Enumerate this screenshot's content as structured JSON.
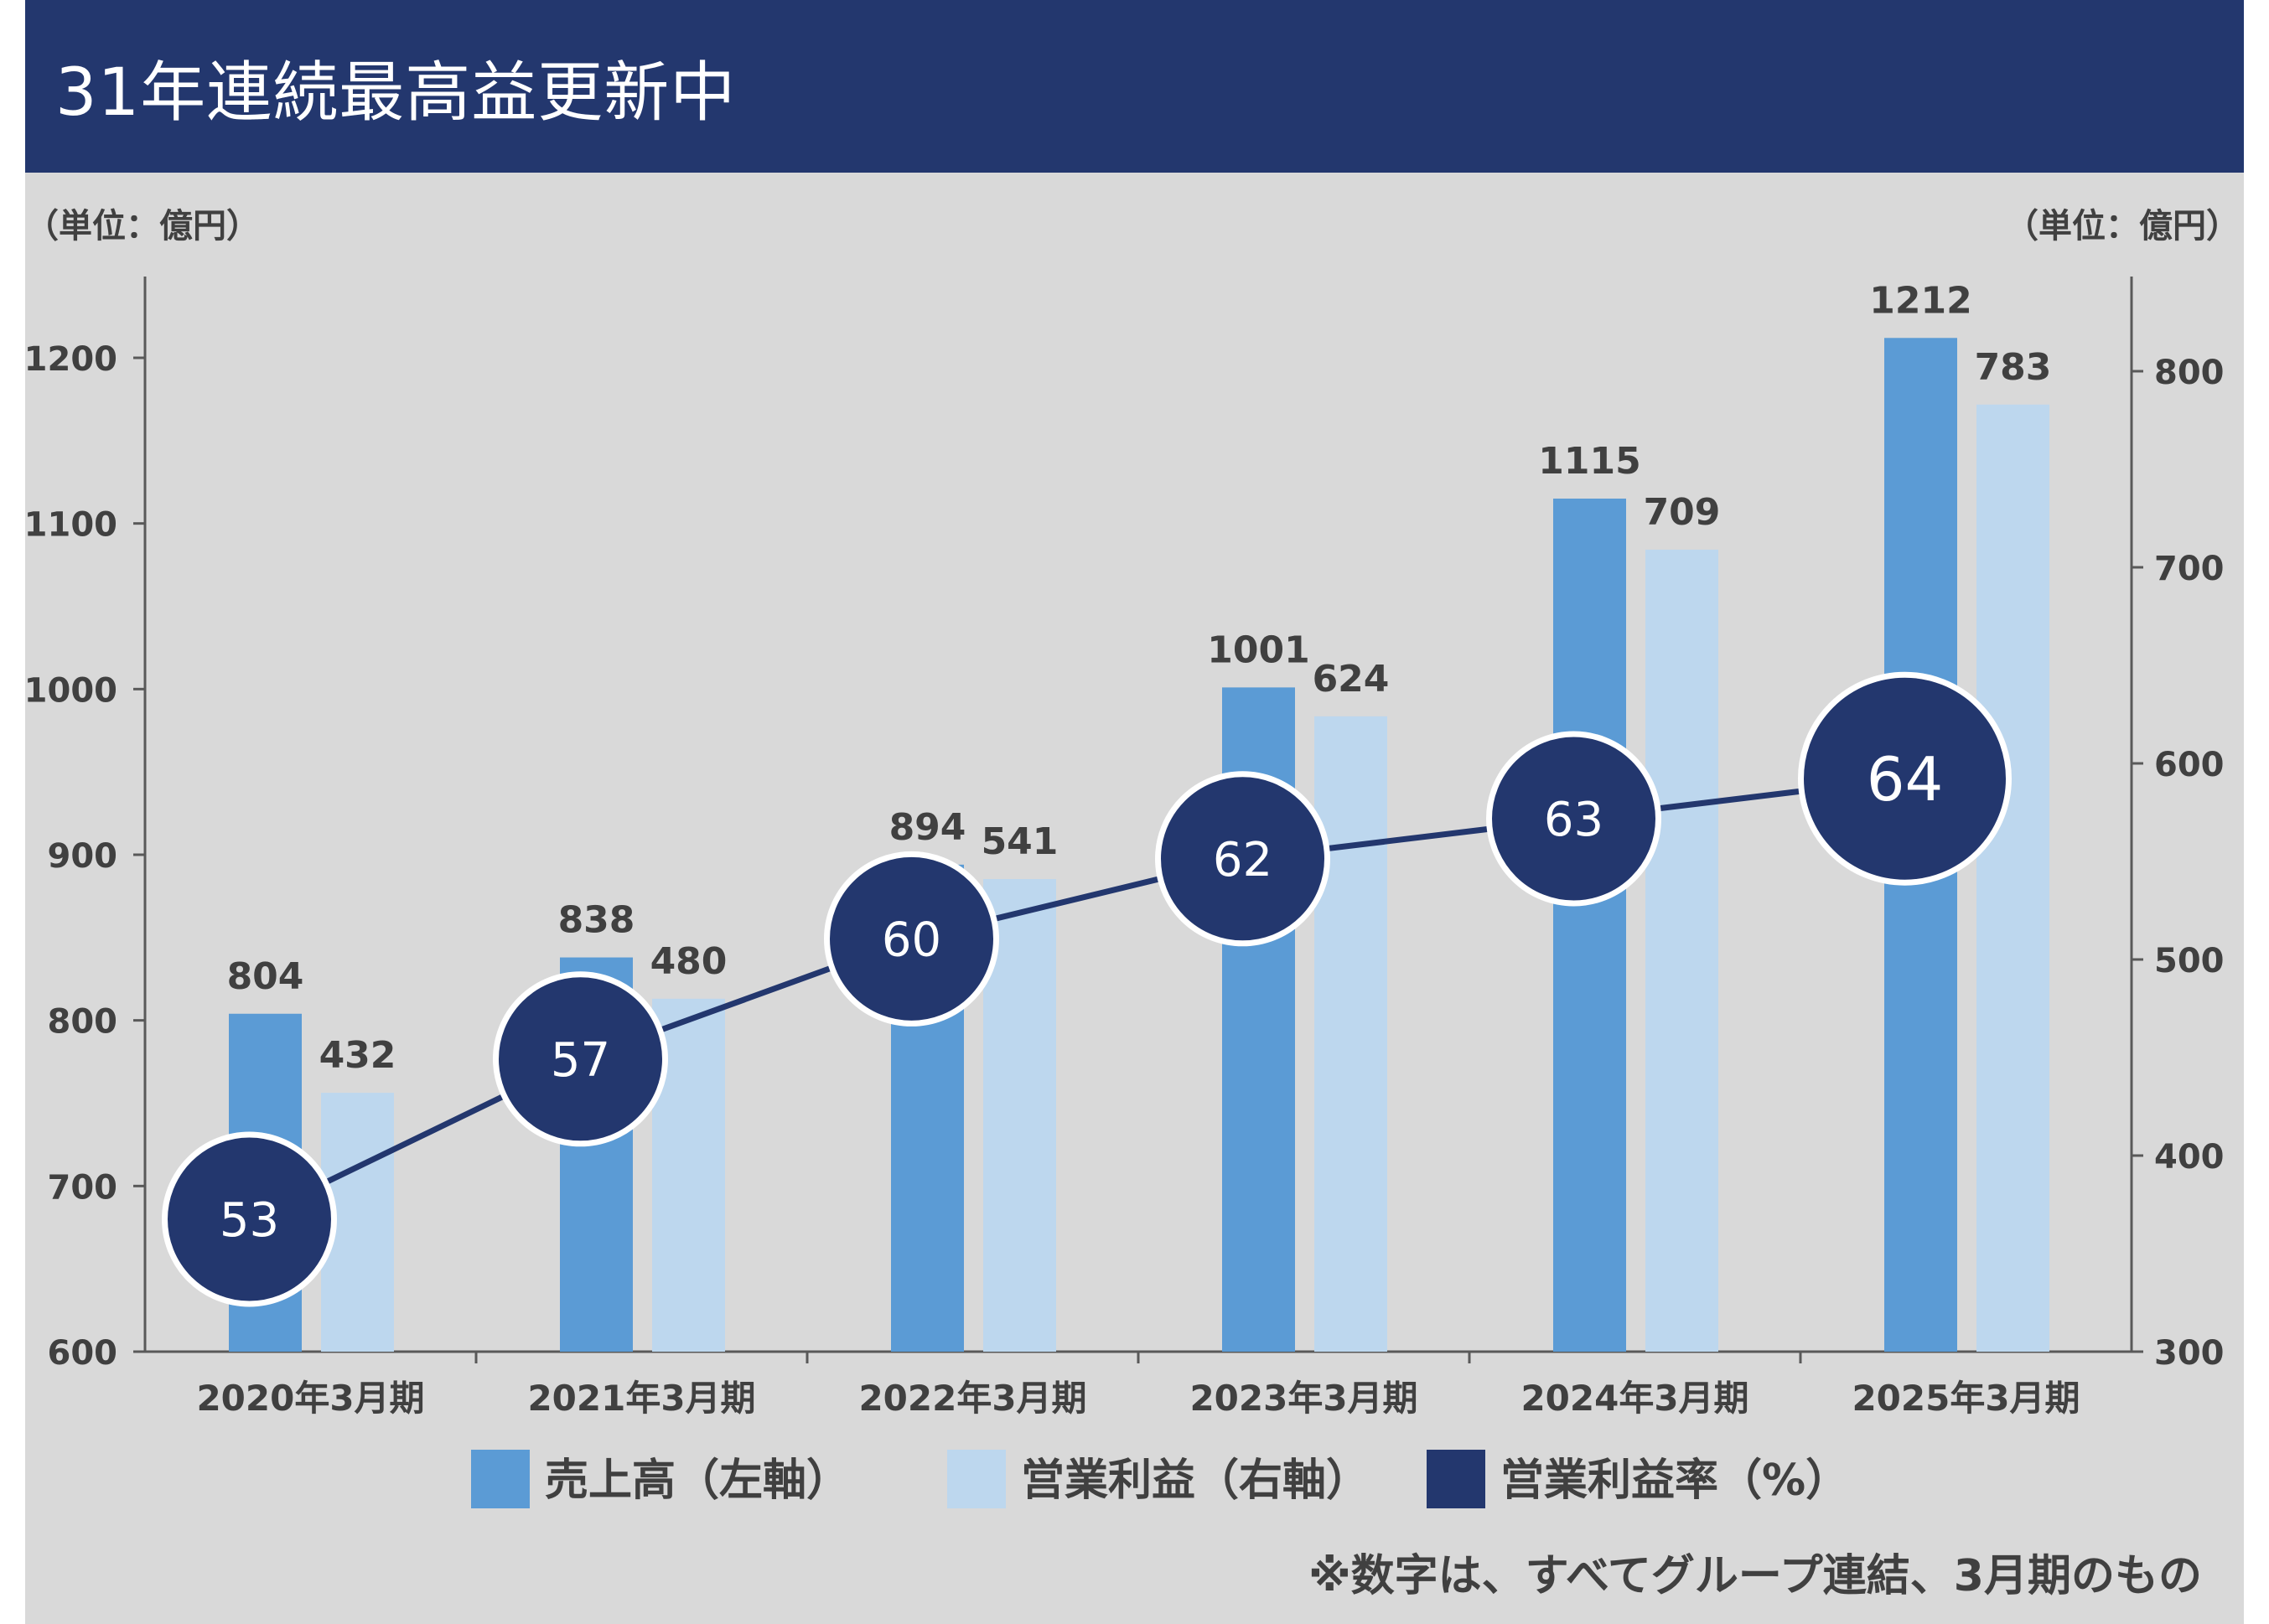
{
  "title": "31年連続最高益更新中",
  "footnote": "※数字は、すべてグループ連結、3月期のもの",
  "chart_data": {
    "type": "bar",
    "left_unit": "（単位：億円）",
    "right_unit": "（単位：億円）",
    "categories": [
      "2020年3月期",
      "2021年3月期",
      "2022年3月期",
      "2023年3月期",
      "2024年3月期",
      "2025年3月期"
    ],
    "left_axis": {
      "ylim": [
        600,
        1250
      ],
      "ticks": [
        600,
        700,
        800,
        900,
        1000,
        1100,
        1200
      ]
    },
    "right_axis": {
      "ylim": [
        300,
        850
      ],
      "ticks": [
        300,
        400,
        500,
        600,
        700,
        800
      ]
    },
    "series": [
      {
        "name": "売上高（左軸）",
        "axis": "left",
        "type": "bar",
        "color": "#5b9bd5",
        "values": [
          804,
          838,
          894,
          1001,
          1115,
          1212
        ]
      },
      {
        "name": "営業利益（右軸）",
        "axis": "right",
        "type": "bar",
        "color": "#bdd7ee",
        "values": [
          432,
          480,
          541,
          624,
          709,
          783
        ]
      },
      {
        "name": "営業利益率（%）",
        "type": "line",
        "color": "#23376e",
        "values": [
          53,
          57,
          60,
          62,
          63,
          64
        ]
      }
    ],
    "legend_position": "bottom"
  }
}
